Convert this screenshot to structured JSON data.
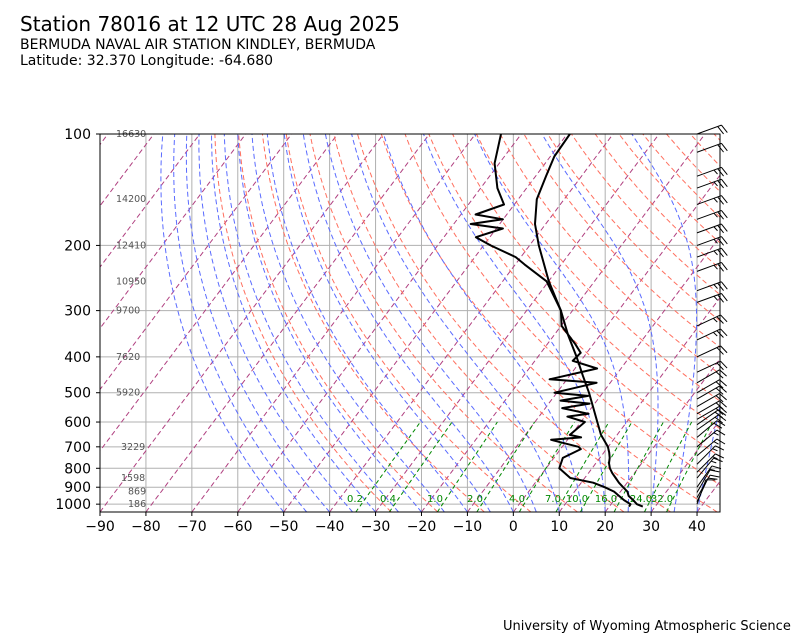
{
  "header": {
    "title": "Station 78016 at 12 UTC 28 Aug 2025",
    "station_name": "BERMUDA NAVAL AIR STATION KINDLEY, BERMUDA",
    "location": "Latitude: 32.370 Longitude: -64.680"
  },
  "footer": {
    "credit": "University of Wyoming Atmospheric Science"
  },
  "colors": {
    "sounding": "#000000",
    "dry_adiabat": "#ff6f5e",
    "moist_adiabat": "#5a6bff",
    "mixing_ratio": "#008800",
    "isotherm_extra": "#b04080",
    "grid": "#b0b0b0"
  },
  "chart_data": {
    "type": "skew-t",
    "x_axis": {
      "label": "",
      "ticks": [
        -90,
        -80,
        -70,
        -60,
        -50,
        -40,
        -30,
        -20,
        -10,
        0,
        10,
        20,
        30,
        40
      ],
      "range": [
        -90,
        45
      ],
      "units": "°C"
    },
    "y_axis": {
      "label": "",
      "ticks": [
        100,
        200,
        300,
        400,
        500,
        600,
        700,
        800,
        900,
        1000
      ],
      "range": [
        1050,
        100
      ],
      "scale": "log",
      "units": "hPa"
    },
    "grid": true,
    "heights": [
      {
        "p": 100,
        "label": "16630"
      },
      {
        "p": 150,
        "label": "14200"
      },
      {
        "p": 200,
        "label": "12410"
      },
      {
        "p": 250,
        "label": "10950"
      },
      {
        "p": 300,
        "label": "9700"
      },
      {
        "p": 400,
        "label": "7620"
      },
      {
        "p": 500,
        "label": "5920"
      },
      {
        "p": 700,
        "label": "3229"
      },
      {
        "p": 850,
        "label": "1598"
      },
      {
        "p": 925,
        "label": "869"
      },
      {
        "p": 1000,
        "label": "186"
      }
    ],
    "mixing_ratio_labels": [
      "0.2",
      "0.4",
      "1.0",
      "2.0",
      "4.0",
      "7.0",
      "10.0",
      "16.0",
      "24.0",
      "32.0"
    ],
    "temperature": [
      [
        1015,
        27.0
      ],
      [
        1000,
        25.2
      ],
      [
        975,
        23.5
      ],
      [
        950,
        21.6
      ],
      [
        925,
        20.4
      ],
      [
        900,
        18.5
      ],
      [
        875,
        16.6
      ],
      [
        850,
        14.9
      ],
      [
        825,
        13.1
      ],
      [
        800,
        11.5
      ],
      [
        775,
        10.2
      ],
      [
        750,
        9.2
      ],
      [
        725,
        7.9
      ],
      [
        700,
        6.4
      ],
      [
        650,
        2.3
      ],
      [
        600,
        -1.3
      ],
      [
        550,
        -5.2
      ],
      [
        500,
        -9.5
      ],
      [
        450,
        -14.5
      ],
      [
        400,
        -20.0
      ],
      [
        350,
        -26.5
      ],
      [
        300,
        -33.5
      ],
      [
        250,
        -42.5
      ],
      [
        200,
        -52.5
      ],
      [
        175,
        -58.0
      ],
      [
        150,
        -63.0
      ],
      [
        130,
        -66.0
      ],
      [
        115,
        -68.5
      ],
      [
        100,
        -70.0
      ]
    ],
    "dewpoint": [
      [
        1015,
        24.0
      ],
      [
        1000,
        23.8
      ],
      [
        975,
        21.5
      ],
      [
        950,
        19.5
      ],
      [
        925,
        17.5
      ],
      [
        900,
        14.5
      ],
      [
        875,
        11.0
      ],
      [
        850,
        5.0
      ],
      [
        800,
        0.5
      ],
      [
        750,
        -1.0
      ],
      [
        710,
        1.0
      ],
      [
        700,
        0.0
      ],
      [
        680,
        -5.0
      ],
      [
        670,
        -7.5
      ],
      [
        660,
        -1.5
      ],
      [
        650,
        -4.5
      ],
      [
        600,
        -4.0
      ],
      [
        580,
        -9.0
      ],
      [
        570,
        -5.0
      ],
      [
        550,
        -12.0
      ],
      [
        535,
        -7.0
      ],
      [
        525,
        -14.0
      ],
      [
        510,
        -9.0
      ],
      [
        500,
        -17.0
      ],
      [
        470,
        -10.0
      ],
      [
        460,
        -21.0
      ],
      [
        430,
        -13.0
      ],
      [
        410,
        -20.0
      ],
      [
        390,
        -20.0
      ],
      [
        370,
        -23.0
      ],
      [
        330,
        -30.0
      ],
      [
        300,
        -33.5
      ],
      [
        250,
        -43.0
      ],
      [
        225,
        -51.5
      ],
      [
        215,
        -55.0
      ],
      [
        200,
        -63.0
      ],
      [
        190,
        -68.0
      ],
      [
        180,
        -64.0
      ],
      [
        175,
        -72.0
      ],
      [
        170,
        -66.0
      ],
      [
        165,
        -73.0
      ],
      [
        155,
        -69.0
      ],
      [
        140,
        -74.0
      ],
      [
        120,
        -80.0
      ],
      [
        100,
        -85.0
      ]
    ],
    "wind_barbs": [
      {
        "p": 1000,
        "dir": 200,
        "spd": 10
      },
      {
        "p": 985,
        "dir": 205,
        "spd": 10
      },
      {
        "p": 960,
        "dir": 210,
        "spd": 10
      },
      {
        "p": 930,
        "dir": 210,
        "spd": 10
      },
      {
        "p": 900,
        "dir": 215,
        "spd": 15
      },
      {
        "p": 850,
        "dir": 220,
        "spd": 15
      },
      {
        "p": 820,
        "dir": 225,
        "spd": 15
      },
      {
        "p": 780,
        "dir": 225,
        "spd": 15
      },
      {
        "p": 740,
        "dir": 230,
        "spd": 15
      },
      {
        "p": 700,
        "dir": 230,
        "spd": 15
      },
      {
        "p": 660,
        "dir": 230,
        "spd": 20
      },
      {
        "p": 630,
        "dir": 235,
        "spd": 20
      },
      {
        "p": 610,
        "dir": 235,
        "spd": 20
      },
      {
        "p": 590,
        "dir": 240,
        "spd": 20
      },
      {
        "p": 570,
        "dir": 240,
        "spd": 20
      },
      {
        "p": 545,
        "dir": 240,
        "spd": 20
      },
      {
        "p": 520,
        "dir": 240,
        "spd": 20
      },
      {
        "p": 500,
        "dir": 240,
        "spd": 20
      },
      {
        "p": 470,
        "dir": 240,
        "spd": 20
      },
      {
        "p": 440,
        "dir": 245,
        "spd": 20
      },
      {
        "p": 400,
        "dir": 245,
        "spd": 20
      },
      {
        "p": 360,
        "dir": 245,
        "spd": 25
      },
      {
        "p": 330,
        "dir": 245,
        "spd": 25
      },
      {
        "p": 285,
        "dir": 250,
        "spd": 25
      },
      {
        "p": 265,
        "dir": 250,
        "spd": 25
      },
      {
        "p": 235,
        "dir": 250,
        "spd": 25
      },
      {
        "p": 215,
        "dir": 250,
        "spd": 25
      },
      {
        "p": 200,
        "dir": 250,
        "spd": 25
      },
      {
        "p": 185,
        "dir": 250,
        "spd": 25
      },
      {
        "p": 170,
        "dir": 250,
        "spd": 25
      },
      {
        "p": 155,
        "dir": 250,
        "spd": 25
      },
      {
        "p": 140,
        "dir": 250,
        "spd": 25
      },
      {
        "p": 130,
        "dir": 250,
        "spd": 25
      },
      {
        "p": 112,
        "dir": 250,
        "spd": 20
      },
      {
        "p": 100,
        "dir": 250,
        "spd": 20
      }
    ]
  }
}
